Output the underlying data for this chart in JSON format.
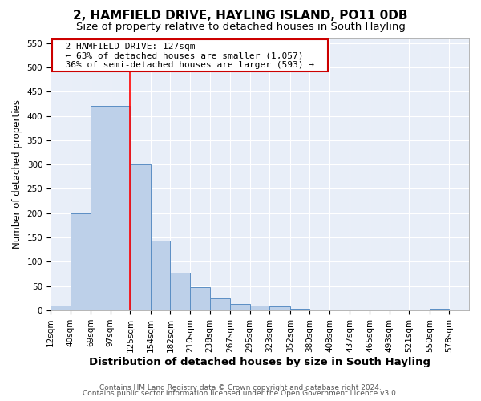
{
  "title1": "2, HAMFIELD DRIVE, HAYLING ISLAND, PO11 0DB",
  "title2": "Size of property relative to detached houses in South Hayling",
  "xlabel": "Distribution of detached houses by size in South Hayling",
  "ylabel": "Number of detached properties",
  "bin_labels": [
    "12sqm",
    "40sqm",
    "69sqm",
    "97sqm",
    "125sqm",
    "154sqm",
    "182sqm",
    "210sqm",
    "238sqm",
    "267sqm",
    "295sqm",
    "323sqm",
    "352sqm",
    "380sqm",
    "408sqm",
    "437sqm",
    "465sqm",
    "493sqm",
    "521sqm",
    "550sqm",
    "578sqm"
  ],
  "bin_edges": [
    12,
    40,
    69,
    97,
    125,
    154,
    182,
    210,
    238,
    267,
    295,
    323,
    352,
    380,
    408,
    437,
    465,
    493,
    521,
    550,
    578
  ],
  "bar_heights": [
    10,
    200,
    420,
    420,
    300,
    143,
    78,
    48,
    25,
    13,
    10,
    8,
    4,
    0,
    0,
    0,
    0,
    0,
    0,
    4
  ],
  "bar_color": "#bdd0e9",
  "bar_edge_color": "#5b8ec4",
  "red_line_x": 125,
  "ylim": [
    0,
    560
  ],
  "yticks": [
    0,
    50,
    100,
    150,
    200,
    250,
    300,
    350,
    400,
    450,
    500,
    550
  ],
  "annotation_text": "  2 HAMFIELD DRIVE: 127sqm  \n  ← 63% of detached houses are smaller (1,057)  \n  36% of semi-detached houses are larger (593) →  ",
  "annotation_box_color": "#ffffff",
  "annotation_box_edge": "#cc0000",
  "footer1": "Contains HM Land Registry data © Crown copyright and database right 2024.",
  "footer2": "Contains public sector information licensed under the Open Government Licence v3.0.",
  "bg_color": "#e8eef8",
  "title1_fontsize": 11,
  "title2_fontsize": 9.5,
  "xlabel_fontsize": 9.5,
  "ylabel_fontsize": 8.5,
  "tick_fontsize": 7.5,
  "footer_fontsize": 6.5
}
